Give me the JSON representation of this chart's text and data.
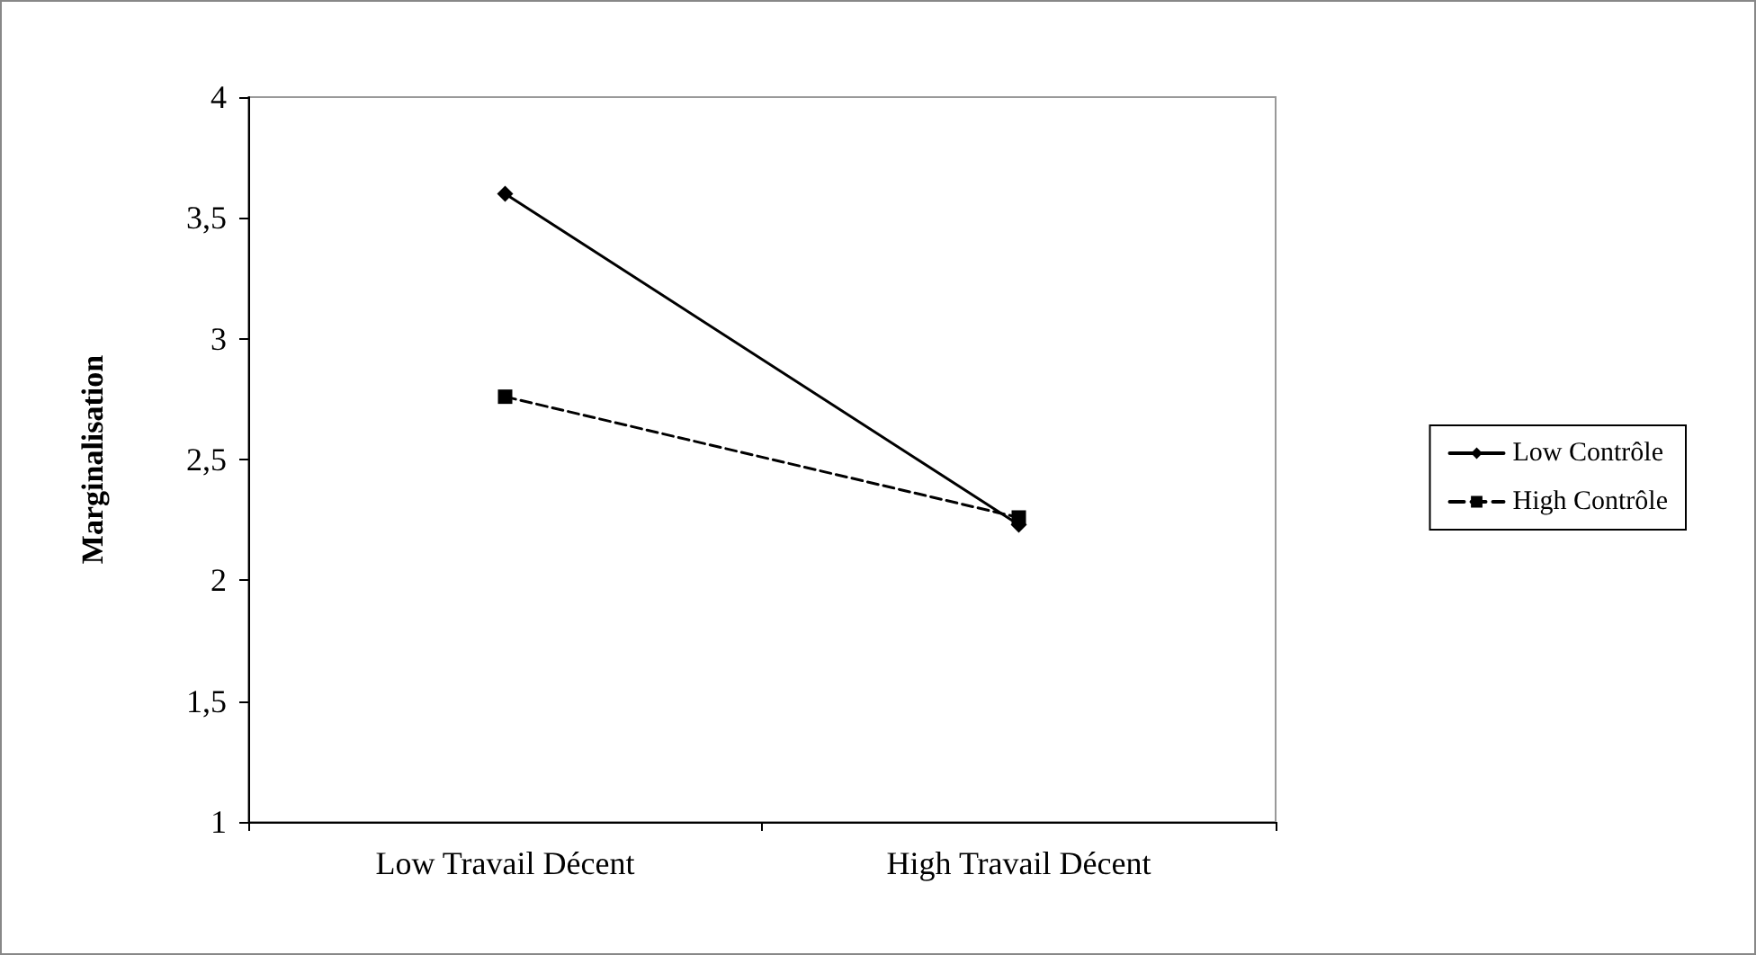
{
  "chart_data": {
    "type": "line",
    "ylabel": "Marginalisation",
    "categories": [
      "Low Travail Décent",
      "High Travail Décent"
    ],
    "series": [
      {
        "name": "Low Contrôle",
        "color": "#000000",
        "values": [
          3.6,
          2.23
        ],
        "marker": "diamond",
        "line_style": "solid"
      },
      {
        "name": "High Contrôle",
        "color": "#000000",
        "values": [
          2.76,
          2.26
        ],
        "marker": "square",
        "line_style": "dashed"
      }
    ],
    "ylim": [
      1,
      4
    ],
    "yticks": [
      1,
      {
        "value": 1.5,
        "label": "1,5"
      },
      2,
      {
        "value": 2.5,
        "label": "2,5"
      },
      3,
      {
        "value": 3.5,
        "label": "3,5"
      },
      4
    ],
    "grid": false,
    "legend": "right"
  }
}
